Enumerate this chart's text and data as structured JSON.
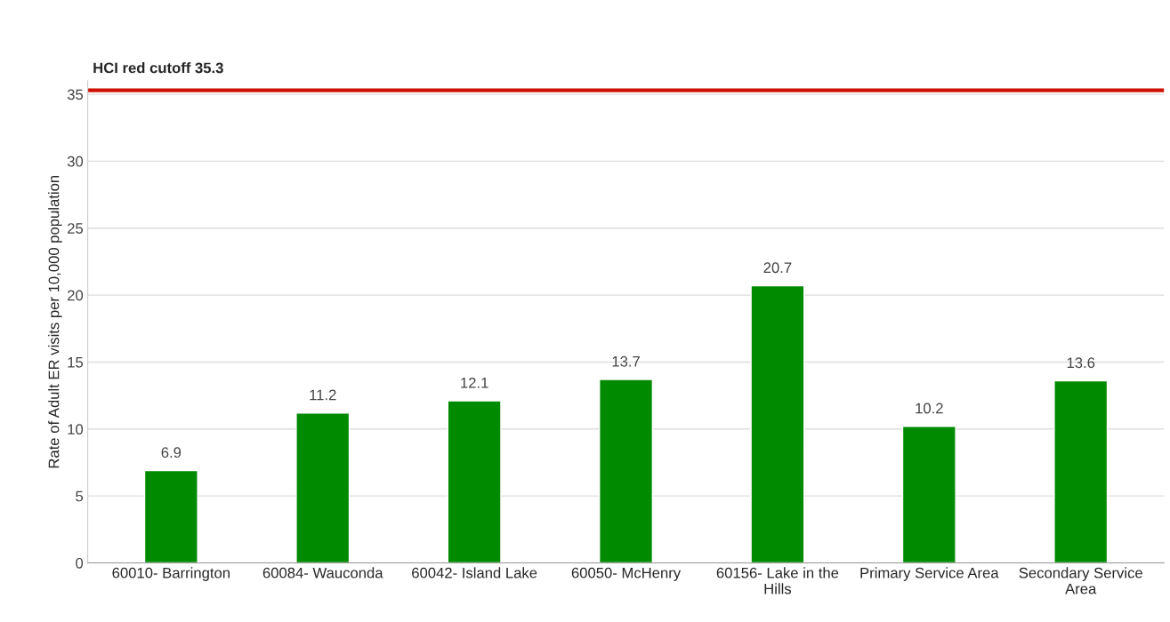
{
  "chart_data": {
    "type": "bar",
    "ylabel": "Rate of Adult ER visits per 10,000 population",
    "categories": [
      "60010- Barrington",
      "60084- Wauconda",
      "60042- Island Lake",
      "60050- McHenry",
      "60156- Lake in the\nHills",
      "Primary Service Area",
      "Secondary Service\nArea"
    ],
    "values": [
      6.9,
      11.2,
      12.1,
      13.7,
      20.7,
      10.2,
      13.6
    ],
    "color": "#008a00",
    "data_labels": true,
    "ylim": [
      0,
      36
    ],
    "yticks": [
      0,
      5,
      10,
      15,
      20,
      25,
      30,
      35
    ],
    "grid": "y",
    "ref_lines": [
      {
        "axis": "y",
        "value": 35.3,
        "label": "HCI red cutoff 35.3",
        "color": "#cc1100",
        "line_style": "solid"
      }
    ]
  }
}
